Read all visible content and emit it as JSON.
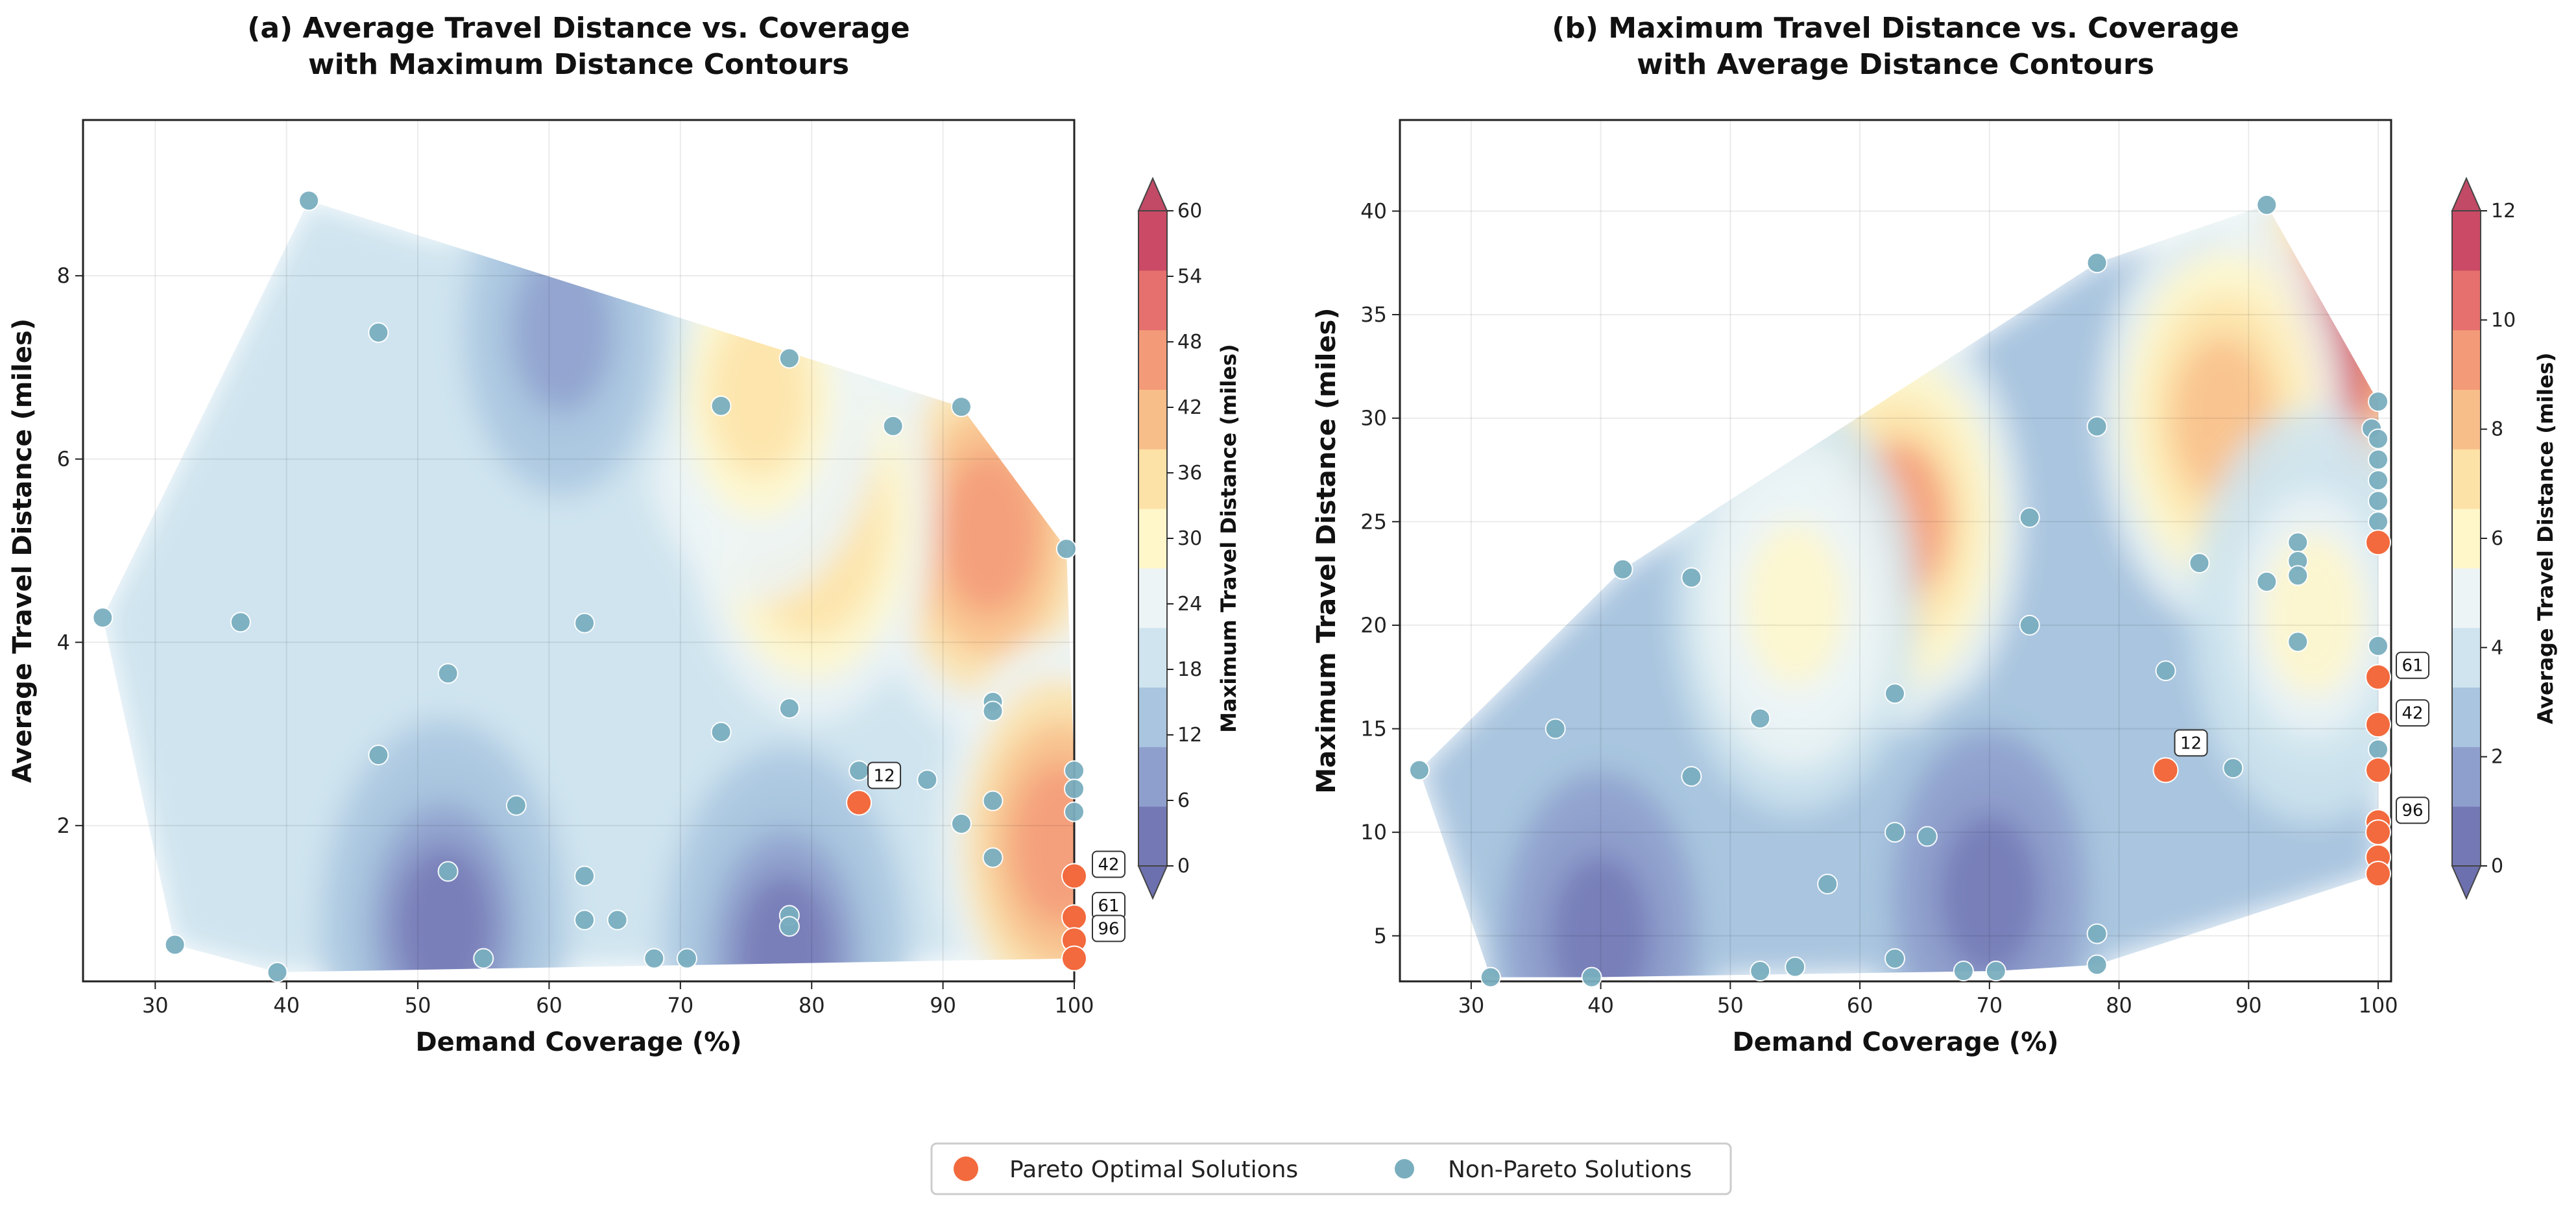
{
  "chart_data": [
    {
      "type": "scatter",
      "variant": "filled-contour",
      "title": "(a) Average Travel Distance vs. Coverage\nwith Maximum Distance Contours",
      "xlabel": "Demand Coverage (%)",
      "ylabel": "Average Travel Distance (miles)",
      "xlim": [
        24.5,
        100
      ],
      "ylim": [
        0.3,
        9.7
      ],
      "xticks": [
        30,
        40,
        50,
        60,
        70,
        80,
        90,
        100
      ],
      "yticks": [
        2,
        4,
        6,
        8
      ],
      "grid": true,
      "colorbar": {
        "label": "Maximum Travel Distance (miles)",
        "range": [
          0,
          60
        ],
        "ticks": [
          0,
          6,
          12,
          18,
          24,
          30,
          36,
          42,
          48,
          54,
          60
        ],
        "extend": "both"
      },
      "contour_peaks": [
        {
          "x": 93.5,
          "y": 5.2,
          "value": 46
        },
        {
          "x": 80,
          "y": 5.4,
          "value": 38
        },
        {
          "x": 76,
          "y": 6.7,
          "value": 33
        },
        {
          "x": 61,
          "y": 7.4,
          "value": 10
        },
        {
          "x": 52,
          "y": 0.9,
          "value": 2
        },
        {
          "x": 78,
          "y": 0.6,
          "value": 3
        },
        {
          "x": 99,
          "y": 1.8,
          "value": 46
        }
      ],
      "pareto": [
        {
          "x": 83.6,
          "y": 2.25,
          "label": "12"
        },
        {
          "x": 100,
          "y": 1.45,
          "label": "42"
        },
        {
          "x": 100,
          "y": 1.0,
          "label": "61"
        },
        {
          "x": 100,
          "y": 0.75,
          "label": "96"
        },
        {
          "x": 100,
          "y": 0.55,
          "label": ""
        }
      ],
      "non_pareto": [
        {
          "x": 26,
          "y": 4.27
        },
        {
          "x": 31.5,
          "y": 0.7
        },
        {
          "x": 36.5,
          "y": 4.22
        },
        {
          "x": 39.3,
          "y": 0.4
        },
        {
          "x": 41.7,
          "y": 8.82
        },
        {
          "x": 47,
          "y": 7.38
        },
        {
          "x": 47,
          "y": 2.77
        },
        {
          "x": 52.3,
          "y": 3.66
        },
        {
          "x": 52.3,
          "y": 1.5
        },
        {
          "x": 55,
          "y": 0.55
        },
        {
          "x": 57.5,
          "y": 2.22
        },
        {
          "x": 62.7,
          "y": 4.21
        },
        {
          "x": 62.7,
          "y": 1.45
        },
        {
          "x": 62.7,
          "y": 0.97
        },
        {
          "x": 65.2,
          "y": 0.97
        },
        {
          "x": 68,
          "y": 0.55
        },
        {
          "x": 70.5,
          "y": 0.55
        },
        {
          "x": 73.1,
          "y": 6.58
        },
        {
          "x": 73.1,
          "y": 3.02
        },
        {
          "x": 78.3,
          "y": 7.1
        },
        {
          "x": 78.3,
          "y": 3.28
        },
        {
          "x": 78.3,
          "y": 1.02
        },
        {
          "x": 78.3,
          "y": 0.9
        },
        {
          "x": 83.6,
          "y": 2.6
        },
        {
          "x": 86.2,
          "y": 6.36
        },
        {
          "x": 88.8,
          "y": 2.5
        },
        {
          "x": 91.4,
          "y": 6.57
        },
        {
          "x": 91.4,
          "y": 2.02
        },
        {
          "x": 93.8,
          "y": 3.35
        },
        {
          "x": 93.8,
          "y": 3.25
        },
        {
          "x": 93.8,
          "y": 2.27
        },
        {
          "x": 93.8,
          "y": 1.65
        },
        {
          "x": 99.4,
          "y": 5.02
        },
        {
          "x": 100,
          "y": 2.6
        },
        {
          "x": 100,
          "y": 2.4
        },
        {
          "x": 100,
          "y": 2.15
        }
      ]
    },
    {
      "type": "scatter",
      "variant": "filled-contour",
      "title": "(b) Maximum Travel Distance vs. Coverage\nwith Average Distance Contours",
      "xlabel": "Demand Coverage (%)",
      "ylabel": "Maximum Travel Distance (miles)",
      "xlim": [
        24.5,
        101
      ],
      "ylim": [
        2.8,
        44.4
      ],
      "xticks": [
        30,
        40,
        50,
        60,
        70,
        80,
        90,
        100
      ],
      "yticks": [
        5,
        10,
        15,
        20,
        25,
        30,
        35,
        40
      ],
      "grid": true,
      "colorbar": {
        "label": "Average Travel Distance (miles)",
        "range": [
          0,
          12
        ],
        "ticks": [
          0,
          2,
          4,
          6,
          8,
          10,
          12
        ],
        "extend": "both"
      },
      "contour_peaks": [
        {
          "x": 95.3,
          "y": 32.5,
          "value": 11.2
        },
        {
          "x": 88,
          "y": 30,
          "value": 8.5
        },
        {
          "x": 63,
          "y": 25,
          "value": 8.8
        },
        {
          "x": 55,
          "y": 21,
          "value": 6
        },
        {
          "x": 70,
          "y": 7,
          "value": 0.5
        },
        {
          "x": 40,
          "y": 5,
          "value": 0.8
        },
        {
          "x": 95,
          "y": 20.5,
          "value": 5.5
        }
      ],
      "pareto": [
        {
          "x": 83.6,
          "y": 13.0,
          "label": "12"
        },
        {
          "x": 100,
          "y": 24.0,
          "label": ""
        },
        {
          "x": 100,
          "y": 17.5,
          "label": "61"
        },
        {
          "x": 100,
          "y": 15.2,
          "label": "42"
        },
        {
          "x": 100,
          "y": 13.0,
          "label": ""
        },
        {
          "x": 100,
          "y": 10.5,
          "label": "96"
        },
        {
          "x": 100,
          "y": 10.0,
          "label": ""
        },
        {
          "x": 100,
          "y": 8.8,
          "label": ""
        },
        {
          "x": 100,
          "y": 8.0,
          "label": ""
        }
      ],
      "non_pareto": [
        {
          "x": 26,
          "y": 13
        },
        {
          "x": 31.5,
          "y": 3
        },
        {
          "x": 36.5,
          "y": 15
        },
        {
          "x": 39.3,
          "y": 3
        },
        {
          "x": 41.7,
          "y": 22.7
        },
        {
          "x": 47,
          "y": 22.3
        },
        {
          "x": 47,
          "y": 12.7
        },
        {
          "x": 52.3,
          "y": 15.5
        },
        {
          "x": 52.3,
          "y": 3.3
        },
        {
          "x": 55,
          "y": 3.5
        },
        {
          "x": 57.5,
          "y": 7.5
        },
        {
          "x": 62.7,
          "y": 16.7
        },
        {
          "x": 62.7,
          "y": 10
        },
        {
          "x": 62.7,
          "y": 3.9
        },
        {
          "x": 65.2,
          "y": 9.8
        },
        {
          "x": 68,
          "y": 3.3
        },
        {
          "x": 70.5,
          "y": 3.3
        },
        {
          "x": 73.1,
          "y": 25.2
        },
        {
          "x": 73.1,
          "y": 20
        },
        {
          "x": 78.3,
          "y": 37.5
        },
        {
          "x": 78.3,
          "y": 29.6
        },
        {
          "x": 78.3,
          "y": 5.1
        },
        {
          "x": 78.3,
          "y": 3.6
        },
        {
          "x": 83.6,
          "y": 17.8
        },
        {
          "x": 86.2,
          "y": 23
        },
        {
          "x": 88.8,
          "y": 13.1
        },
        {
          "x": 91.4,
          "y": 40.3
        },
        {
          "x": 91.4,
          "y": 22.1
        },
        {
          "x": 93.8,
          "y": 24
        },
        {
          "x": 93.8,
          "y": 23.1
        },
        {
          "x": 93.8,
          "y": 22.4
        },
        {
          "x": 93.8,
          "y": 19.2
        },
        {
          "x": 100,
          "y": 30.8
        },
        {
          "x": 99.5,
          "y": 29.5
        },
        {
          "x": 100,
          "y": 29
        },
        {
          "x": 100,
          "y": 28
        },
        {
          "x": 100,
          "y": 27
        },
        {
          "x": 100,
          "y": 26
        },
        {
          "x": 100,
          "y": 25
        },
        {
          "x": 100,
          "y": 19
        },
        {
          "x": 100,
          "y": 14
        }
      ]
    }
  ],
  "legend": {
    "pareto_label": "Pareto Optimal Solutions",
    "non_pareto_label": "Non-Pareto Solutions"
  },
  "colors": {
    "pareto": "#f26a3d",
    "non_pareto": "#7aaebf",
    "colormap": [
      "#7479b5",
      "#8f9fcd",
      "#a9c5df",
      "#cfe4ef",
      "#ecf4f6",
      "#fff7c9",
      "#fde2a7",
      "#f8be8a",
      "#f39a78",
      "#e5706d",
      "#cb4a65"
    ]
  }
}
